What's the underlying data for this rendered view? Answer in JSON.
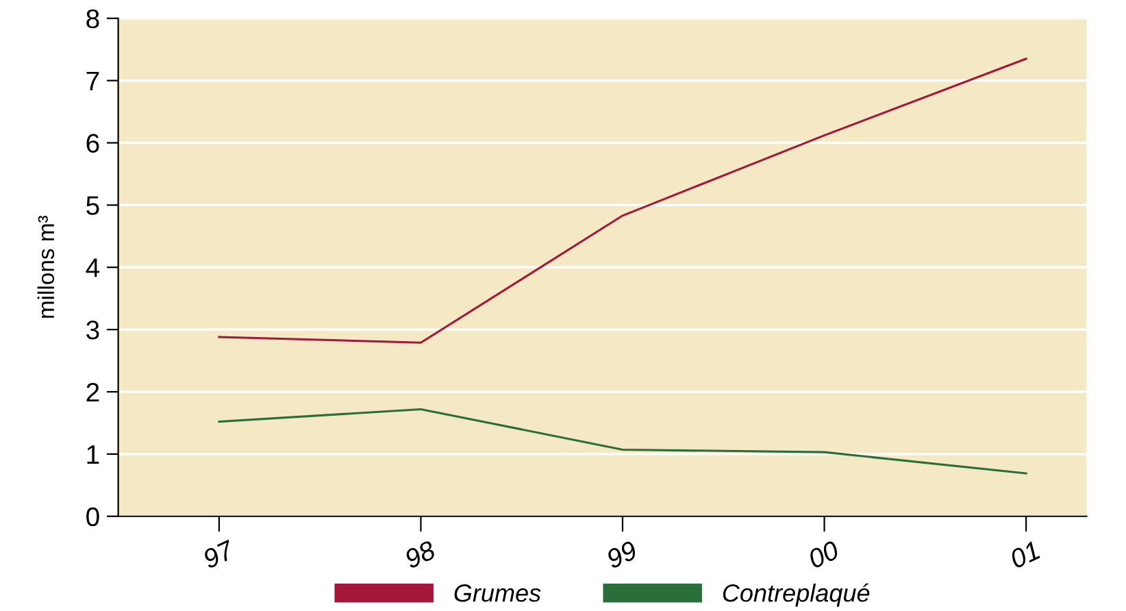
{
  "chart_data": {
    "type": "line",
    "ylabel": "millons m³",
    "categories": [
      "97",
      "98",
      "99",
      "00",
      "01"
    ],
    "series": [
      {
        "name": "Grumes",
        "color": "#a3173a",
        "values": [
          2.88,
          2.79,
          4.83,
          6.12,
          7.35
        ]
      },
      {
        "name": "Contreplaqué",
        "color": "#2a6e3a",
        "values": [
          1.52,
          1.72,
          1.07,
          1.03,
          0.69
        ]
      }
    ],
    "ylim": [
      0,
      8
    ],
    "yticks": [
      0,
      1,
      2,
      3,
      4,
      5,
      6,
      7,
      8
    ],
    "grid": "y",
    "legend": "bottom",
    "marker": "none",
    "line_style": "solid"
  }
}
